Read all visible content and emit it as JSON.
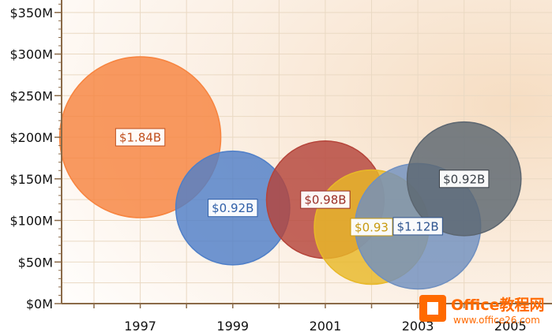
{
  "chart_data": {
    "type": "bubble",
    "title": "",
    "xlabel": "",
    "ylabel": "",
    "x_ticks": [
      "1997",
      "1999",
      "2001",
      "2003",
      "2005"
    ],
    "y_ticks": [
      "$0M",
      "$50M",
      "$100M",
      "$150M",
      "$200M",
      "$250M",
      "$300M",
      "$350M"
    ],
    "xlim": [
      1995.3,
      2005.9
    ],
    "ylim": [
      0,
      365
    ],
    "grid": true,
    "series": [
      {
        "x": 1997,
        "y": 200,
        "size": 1.84,
        "label": "$1.84B",
        "color": "#f7843f",
        "label_color": "#c0501e"
      },
      {
        "x": 1999,
        "y": 115,
        "size": 0.92,
        "label": "$0.92B",
        "color": "#4f7fc8",
        "label_color": "#2f5fa8"
      },
      {
        "x": 2001,
        "y": 125,
        "size": 0.98,
        "label": "$0.98B",
        "color": "#b5443a",
        "label_color": "#9a2f27"
      },
      {
        "x": 2002,
        "y": 92,
        "size": 0.93,
        "label": "$0.93",
        "color": "#e8b828",
        "label_color": "#c89a10"
      },
      {
        "x": 2003,
        "y": 93,
        "size": 1.12,
        "label": "$1.12B",
        "color": "#7090c0",
        "label_color": "#2f5590"
      },
      {
        "x": 2004,
        "y": 150,
        "size": 0.92,
        "label": "$0.92B",
        "color": "#5c6670",
        "label_color": "#3a4048"
      }
    ]
  },
  "watermark": {
    "brand": "Office",
    "brand_suffix": "教程网",
    "url": "www.office26.com",
    "accent": "#ff6a00"
  }
}
